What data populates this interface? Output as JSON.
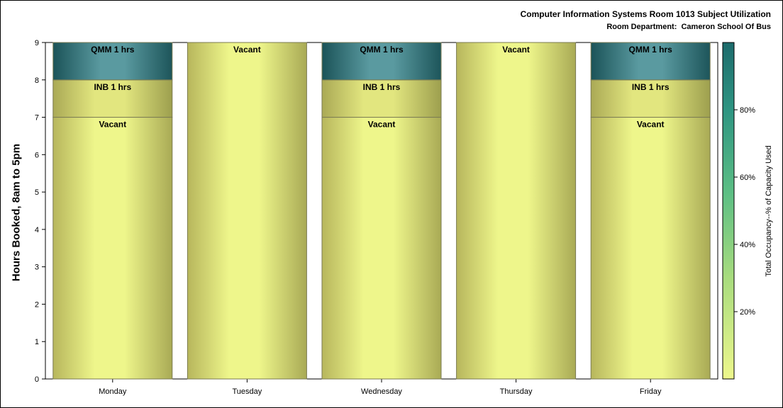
{
  "chart_data": {
    "type": "bar",
    "stacked": true,
    "title": "Computer Information Systems Room 1013 Subject Utilization",
    "subtitle": "Room Department:  Cameron School Of Bus",
    "ylabel": "Hours Booked, 8am to 5pm",
    "xlabel": "",
    "ylim": [
      0,
      9
    ],
    "yticks": [
      0,
      1,
      2,
      3,
      4,
      5,
      6,
      7,
      8,
      9
    ],
    "categories": [
      "Monday",
      "Tuesday",
      "Wednesday",
      "Thursday",
      "Friday"
    ],
    "bars": [
      {
        "day": "Monday",
        "segments": [
          {
            "label": "Vacant",
            "hours": 7
          },
          {
            "label": "INB 1 hrs",
            "hours": 1
          },
          {
            "label": "QMM 1 hrs",
            "hours": 1
          }
        ]
      },
      {
        "day": "Tuesday",
        "segments": [
          {
            "label": "Vacant",
            "hours": 9
          }
        ]
      },
      {
        "day": "Wednesday",
        "segments": [
          {
            "label": "Vacant",
            "hours": 7
          },
          {
            "label": "INB 1 hrs",
            "hours": 1
          },
          {
            "label": "QMM 1 hrs",
            "hours": 1
          }
        ]
      },
      {
        "day": "Thursday",
        "segments": [
          {
            "label": "Vacant",
            "hours": 9
          }
        ]
      },
      {
        "day": "Friday",
        "segments": [
          {
            "label": "Vacant",
            "hours": 7
          },
          {
            "label": "INB 1 hrs",
            "hours": 1
          },
          {
            "label": "QMM 1 hrs",
            "hours": 1
          }
        ]
      }
    ],
    "colorbar": {
      "label": "Total Occupancy--% of Capacity Used",
      "ticks": [
        "20%",
        "40%",
        "60%",
        "80%"
      ],
      "tick_values": [
        20,
        40,
        60,
        80
      ],
      "range": [
        0,
        100
      ],
      "color_low": "#edf78c",
      "color_high": "#1f6b6b"
    },
    "colors": {
      "vacant": "#eef58a",
      "inb": "#dde07a",
      "qmm": "#2f7d80"
    }
  }
}
